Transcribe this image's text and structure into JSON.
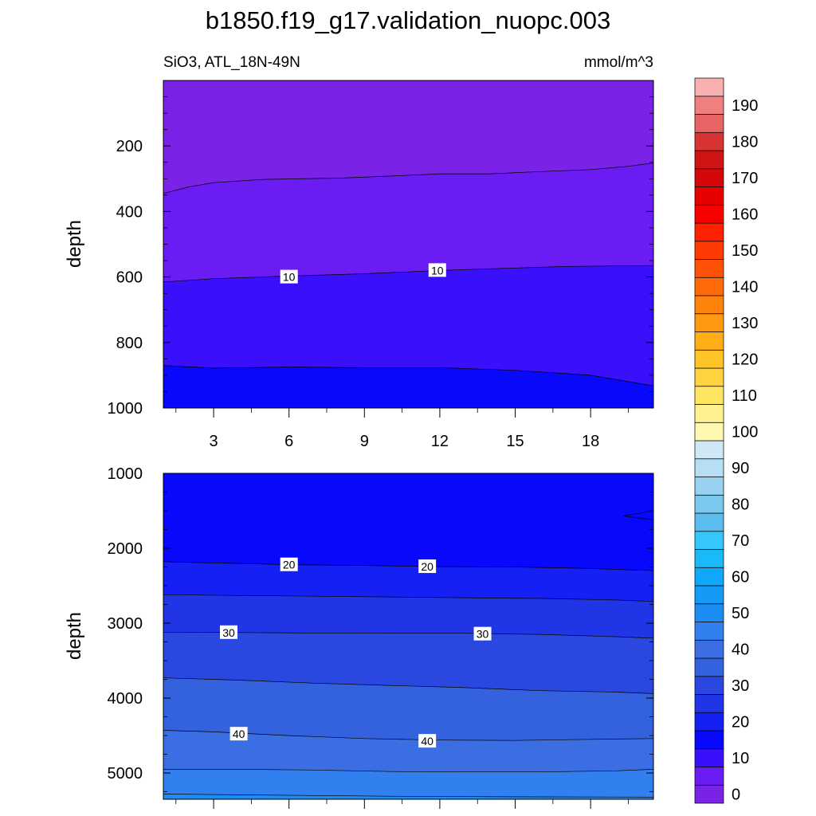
{
  "title": "b1850.f19_g17.validation_nuopc.003",
  "chart_data": [
    {
      "type": "contour",
      "panel": "top",
      "left_label": "SiO3, ATL_18N-49N",
      "right_label": "mmol/m^3",
      "ylabel": "depth",
      "xlabel": "",
      "xlim": [
        1,
        20.5
      ],
      "ylim": [
        1000,
        0
      ],
      "x_ticks": [
        3,
        6,
        9,
        12,
        15,
        18
      ],
      "y_ticks": [
        200,
        400,
        600,
        800,
        1000
      ],
      "contour_lines": [
        {
          "level": 5,
          "points": [
            [
              1,
              345
            ],
            [
              2,
              325
            ],
            [
              3,
              312
            ],
            [
              5,
              302
            ],
            [
              8,
              298
            ],
            [
              10,
              292
            ],
            [
              12,
              285
            ],
            [
              14,
              285
            ],
            [
              16,
              278
            ],
            [
              18,
              272
            ],
            [
              19.5,
              262
            ],
            [
              20.5,
              252
            ]
          ]
        },
        {
          "level": 10,
          "points": [
            [
              1,
              615
            ],
            [
              3,
              605
            ],
            [
              6,
              597
            ],
            [
              9,
              590
            ],
            [
              12,
              580
            ],
            [
              14,
              575
            ],
            [
              17,
              568
            ],
            [
              20.5,
              565
            ]
          ]
        },
        {
          "level": 15,
          "points": [
            [
              1,
              870
            ],
            [
              3,
              878
            ],
            [
              6,
              875
            ],
            [
              9,
              877
            ],
            [
              12,
              877
            ],
            [
              15,
              885
            ],
            [
              18,
              900
            ],
            [
              20.5,
              932
            ]
          ]
        }
      ],
      "fill_values": [
        2,
        7,
        12,
        16
      ],
      "contour_labels": [
        {
          "text": "10",
          "x": 6,
          "y": 600
        },
        {
          "text": "10",
          "x": 11.9,
          "y": 580
        }
      ]
    },
    {
      "type": "contour",
      "panel": "bottom",
      "ylabel": "depth",
      "xlabel": "",
      "xlim": [
        1,
        20.5
      ],
      "ylim": [
        5350,
        1000
      ],
      "y_ticks": [
        1000,
        2000,
        3000,
        4000,
        5000
      ],
      "contour_lines": [
        {
          "level": 20,
          "points": [
            [
              1,
              2180
            ],
            [
              3,
              2195
            ],
            [
              6,
              2220
            ],
            [
              9,
              2230
            ],
            [
              12,
              2245
            ],
            [
              15,
              2250
            ],
            [
              18,
              2270
            ],
            [
              20.5,
              2300
            ]
          ]
        },
        {
          "level": 25,
          "points": [
            [
              1,
              2620
            ],
            [
              4,
              2630
            ],
            [
              7,
              2640
            ],
            [
              10,
              2650
            ],
            [
              13,
              2660
            ],
            [
              16,
              2670
            ],
            [
              19,
              2690
            ],
            [
              20.5,
              2710
            ]
          ]
        },
        {
          "level": 30,
          "points": [
            [
              1,
              3120
            ],
            [
              4,
              3125
            ],
            [
              7,
              3130
            ],
            [
              10,
              3135
            ],
            [
              13,
              3135
            ],
            [
              16,
              3150
            ],
            [
              19,
              3180
            ],
            [
              20.5,
              3200
            ]
          ]
        },
        {
          "level": 35,
          "points": [
            [
              1,
              3730
            ],
            [
              4,
              3760
            ],
            [
              7,
              3800
            ],
            [
              10,
              3830
            ],
            [
              13,
              3860
            ],
            [
              16,
              3900
            ],
            [
              19,
              3920
            ],
            [
              20.5,
              3940
            ]
          ]
        },
        {
          "level": 40,
          "points": [
            [
              1,
              4430
            ],
            [
              3,
              4450
            ],
            [
              6,
              4500
            ],
            [
              9,
              4540
            ],
            [
              12,
              4560
            ],
            [
              15,
              4565
            ],
            [
              18,
              4550
            ],
            [
              20.5,
              4540
            ]
          ]
        },
        {
          "level": 45,
          "points": [
            [
              1,
              4950
            ],
            [
              4,
              4950
            ],
            [
              7,
              4960
            ],
            [
              10,
              4980
            ],
            [
              13,
              4985
            ],
            [
              16,
              4985
            ],
            [
              19,
              4970
            ],
            [
              20.5,
              4950
            ]
          ]
        },
        {
          "level": 50,
          "points": [
            [
              1,
              5280
            ],
            [
              4,
              5290
            ],
            [
              7,
              5300
            ],
            [
              10,
              5310
            ],
            [
              13,
              5315
            ],
            [
              16,
              5318
            ],
            [
              19,
              5320
            ],
            [
              20.5,
              5322
            ]
          ]
        }
      ],
      "extra_feature": {
        "level": 17.5,
        "points": [
          [
            20.5,
            1500
          ],
          [
            19.3,
            1570
          ],
          [
            20.5,
            1620
          ]
        ]
      },
      "fill_values": [
        18,
        22,
        27,
        32,
        37,
        42,
        47,
        52
      ],
      "contour_labels": [
        {
          "text": "20",
          "x": 6,
          "y": 2220
        },
        {
          "text": "20",
          "x": 11.5,
          "y": 2245
        },
        {
          "text": "30",
          "x": 3.6,
          "y": 3125
        },
        {
          "text": "30",
          "x": 13.7,
          "y": 3145
        },
        {
          "text": "40",
          "x": 4,
          "y": 4480
        },
        {
          "text": "40",
          "x": 11.5,
          "y": 4575
        }
      ]
    }
  ],
  "colorbar": {
    "levels": [
      0,
      5,
      10,
      15,
      20,
      25,
      30,
      35,
      40,
      45,
      50,
      55,
      60,
      65,
      70,
      75,
      80,
      85,
      90,
      95,
      100,
      105,
      110,
      115,
      120,
      125,
      130,
      135,
      140,
      145,
      150,
      155,
      160,
      165,
      170,
      175,
      180,
      185,
      190,
      195
    ],
    "labels": [
      "0",
      "10",
      "20",
      "30",
      "40",
      "50",
      "60",
      "70",
      "80",
      "90",
      "100",
      "110",
      "120",
      "130",
      "140",
      "150",
      "160",
      "170",
      "180",
      "190"
    ],
    "colors": [
      "#7a22e6",
      "#6a1cf2",
      "#3a10fa",
      "#0808fa",
      "#1420f4",
      "#2035e6",
      "#2a48e0",
      "#3462de",
      "#3a6ee2",
      "#327ff0",
      "#1d8df6",
      "#169af8",
      "#10a8fa",
      "#1abafa",
      "#35c6fa",
      "#5cbef0",
      "#7ac8ee",
      "#98d2f0",
      "#b6def4",
      "#d0e8f6",
      "#fff8b0",
      "#fff090",
      "#ffe660",
      "#ffd240",
      "#ffc428",
      "#ffae18",
      "#ff9a10",
      "#ff820c",
      "#ff6a08",
      "#ff5206",
      "#ff3a04",
      "#ff2202",
      "#f80000",
      "#e60000",
      "#d40808",
      "#ce1414",
      "#d83434",
      "#e86464",
      "#f08080",
      "#f8b0b0"
    ]
  }
}
